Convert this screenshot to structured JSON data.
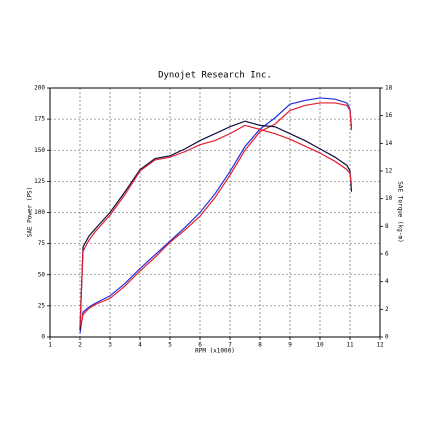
{
  "chart_data": {
    "type": "line",
    "title": "Dynojet Research Inc.",
    "x_label": "RPM (x1000)",
    "y_label": "SAE Power (PS)",
    "y2_label": "SAE Torque (kg-m)",
    "x": [
      2.0,
      2.1,
      2.3,
      2.5,
      3,
      3.5,
      4,
      4.5,
      5,
      5.5,
      6,
      6.5,
      7,
      7.5,
      8,
      8.5,
      9,
      9.5,
      10,
      10.5,
      10.9,
      11.0,
      11.05
    ],
    "series": [
      {
        "color": "#2030e0",
        "values": [
          3,
          20,
          24,
          27,
          33,
          43,
          55,
          66,
          77,
          88,
          100,
          115,
          133,
          153,
          167,
          176,
          187,
          190,
          192,
          191,
          188,
          183,
          168
        ]
      },
      {
        "color": "#e02030",
        "values": [
          6,
          18,
          23,
          26,
          31,
          41,
          53,
          64,
          76,
          86,
          97,
          112,
          130,
          150,
          165,
          171,
          182,
          186,
          188,
          188,
          186,
          182,
          166
        ]
      },
      {
        "color": "#101040",
        "axis": "y2",
        "values": [
          0.5,
          6.5,
          7.3,
          7.8,
          9,
          10.5,
          12.1,
          12.9,
          13.1,
          13.6,
          14.2,
          14.7,
          15.2,
          15.6,
          15.3,
          15.2,
          14.7,
          14.2,
          13.6,
          13.0,
          12.4,
          12.0,
          10.5
        ]
      },
      {
        "color": "#e02030",
        "axis": "y2",
        "values": [
          0.8,
          6.2,
          7.0,
          7.6,
          8.8,
          10.3,
          12.0,
          12.8,
          13.0,
          13.4,
          13.9,
          14.2,
          14.7,
          15.3,
          15.0,
          14.7,
          14.3,
          13.8,
          13.3,
          12.7,
          12.1,
          11.8,
          11.0
        ]
      }
    ],
    "xlim": [
      1,
      12
    ],
    "xticks": [
      1,
      2,
      3,
      4,
      5,
      6,
      7,
      8,
      9,
      10,
      11,
      12
    ],
    "ylim": [
      0,
      200
    ],
    "yticks": [
      0,
      25,
      50,
      75,
      100,
      125,
      150,
      175,
      200
    ],
    "y2lim": [
      0,
      18
    ],
    "y2ticks": [
      0,
      2,
      4,
      6,
      8,
      10,
      12,
      14,
      16,
      18
    ],
    "grid": true
  }
}
